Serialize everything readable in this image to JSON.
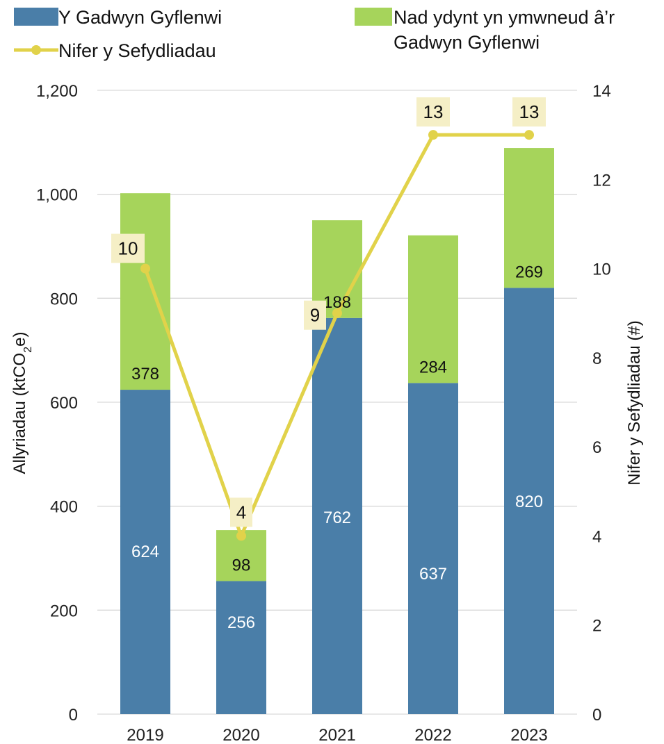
{
  "chart_data": {
    "type": "bar",
    "categories": [
      "2019",
      "2020",
      "2021",
      "2022",
      "2023"
    ],
    "series": [
      {
        "name": "Y Gadwyn Gyflenwi",
        "type": "bar",
        "stack": "emissions",
        "axis": "left",
        "color": "#4a7ea8",
        "values": [
          624,
          256,
          762,
          637,
          820
        ]
      },
      {
        "name": "Nad ydynt yn ymwneud â’r Gadwyn Gyflenwi",
        "type": "bar",
        "stack": "emissions",
        "axis": "left",
        "color": "#a6d45b",
        "values": [
          378,
          98,
          188,
          284,
          269
        ]
      },
      {
        "name": "Nifer y Sefydliadau",
        "type": "line",
        "axis": "right",
        "color": "#e1d24a",
        "values": [
          10,
          4,
          9,
          13,
          13
        ]
      }
    ],
    "bar_labels": {
      "Y Gadwyn Gyflenwi": [
        "624",
        "256",
        "762",
        "637",
        "820"
      ],
      "Nad ydynt yn ymwneud â’r Gadwyn Gyflenwi": [
        "378",
        "98",
        "188",
        "284",
        "269"
      ]
    },
    "line_labels": [
      "10",
      "4",
      "9",
      "13",
      "13"
    ],
    "legend": {
      "position": "top",
      "items": [
        {
          "label_lines": [
            "Y Gadwyn Gyflenwi"
          ],
          "swatch": "rect",
          "color": "#4a7ea8"
        },
        {
          "label_lines": [
            "Nad ydynt yn ymwneud â’r",
            "Gadwyn Gyflenwi"
          ],
          "swatch": "rect",
          "color": "#a6d45b"
        },
        {
          "label_lines": [
            "Nifer y Sefydliadau"
          ],
          "swatch": "line-marker",
          "color": "#e1d24a"
        }
      ]
    },
    "y_left": {
      "label": "Allyriadau (ktCO₂e)",
      "label_parts": [
        "Allyriadau (ktCO",
        "2",
        "e)"
      ],
      "min": 0,
      "max": 1200,
      "ticks": [
        0,
        200,
        400,
        600,
        800,
        1000,
        1200
      ],
      "tick_labels": [
        "0",
        "200",
        "400",
        "600",
        "800",
        "1,000",
        "1,200"
      ]
    },
    "y_right": {
      "label": "Nifer y Sefydliadau (#)",
      "min": 0,
      "max": 14,
      "ticks": [
        0,
        2,
        4,
        6,
        8,
        10,
        12,
        14
      ],
      "tick_labels": [
        "0",
        "2",
        "4",
        "6",
        "8",
        "10",
        "12",
        "14"
      ]
    },
    "grid": true,
    "colors": {
      "grid": "#d9d9d9",
      "line_label_bg": "#f5efc6",
      "bar_label_on_blue": "#ffffff",
      "bar_label_on_green": "#111111"
    }
  }
}
